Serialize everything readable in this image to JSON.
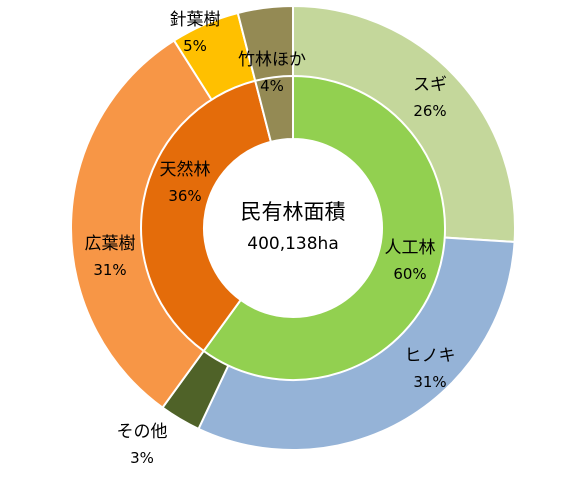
{
  "chart_data": {
    "type": "pie",
    "subtype": "nested-donut",
    "center_title": "民有林面積",
    "center_value": "400,138ha",
    "inner_ring": [
      {
        "name": "人工林",
        "value": 60,
        "label": "60%",
        "color": "#92D050"
      },
      {
        "name": "天然林",
        "value": 36,
        "label": "36%",
        "color": "#E46C0A"
      },
      {
        "name": "竹林ほか",
        "value": 4,
        "label": "4%",
        "color": "#948A54"
      }
    ],
    "outer_ring": [
      {
        "name": "スギ",
        "value": 26,
        "label": "26%",
        "color": "#C4D79B"
      },
      {
        "name": "ヒノキ",
        "value": 31,
        "label": "31%",
        "color": "#95B3D7"
      },
      {
        "name": "その他",
        "value": 3,
        "label": "3%",
        "color": "#4F6228"
      },
      {
        "name": "広葉樹",
        "value": 31,
        "label": "31%",
        "color": "#F79646"
      },
      {
        "name": "針葉樹",
        "value": 5,
        "label": "5%",
        "color": "#FFC000"
      },
      {
        "name": "竹林ほか",
        "value": 4,
        "label": "4%",
        "color": "#948A54"
      }
    ],
    "legend": "none"
  }
}
